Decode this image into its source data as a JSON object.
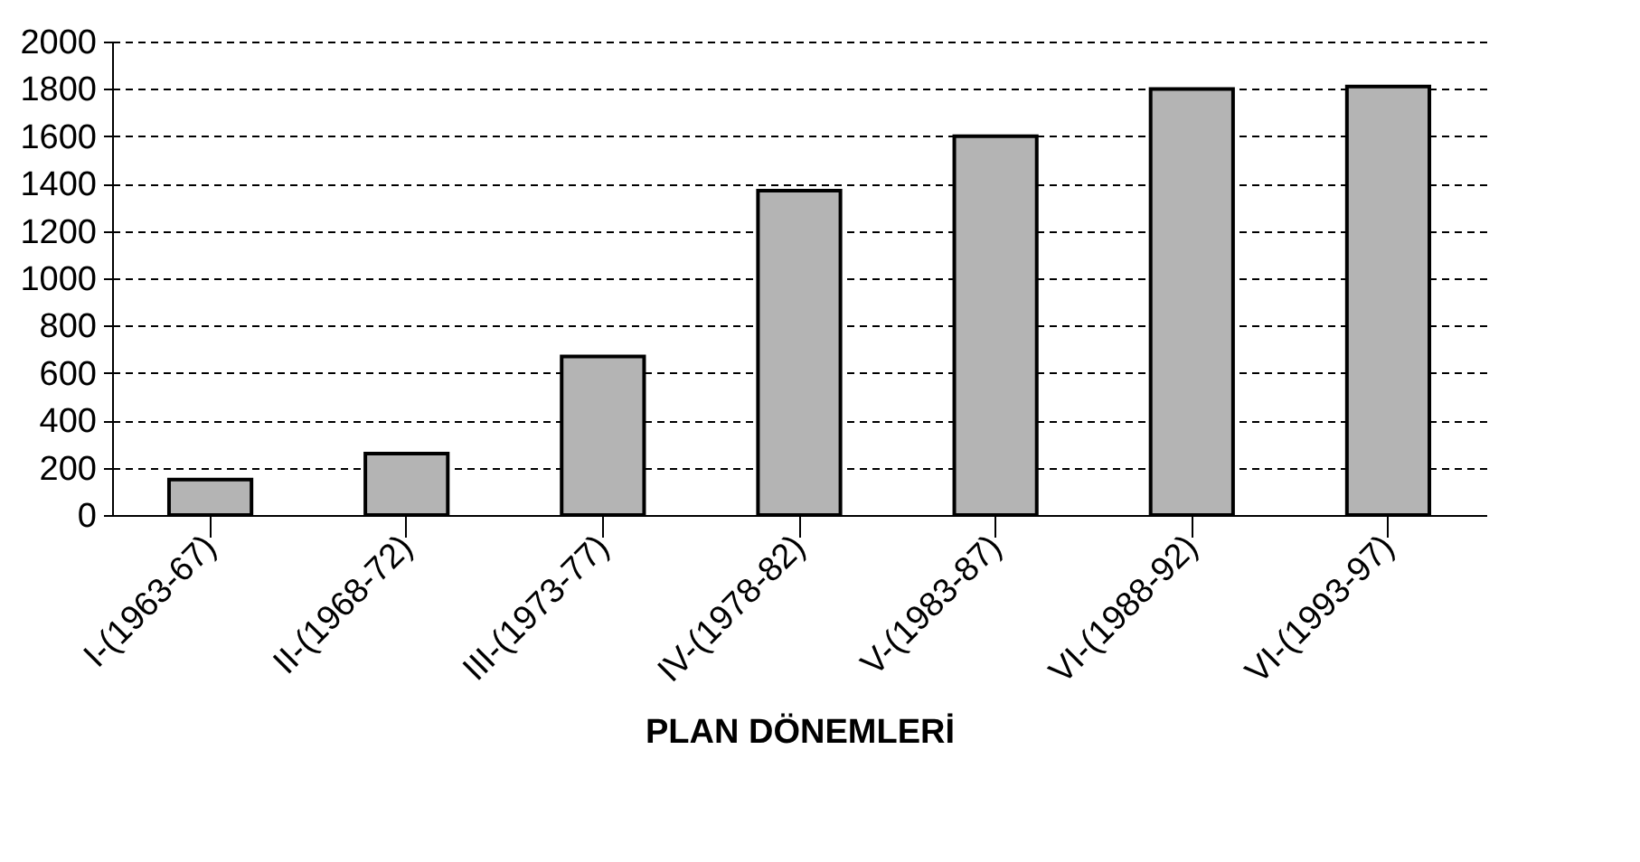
{
  "chart_data": {
    "type": "bar",
    "xlabel": "PLAN DÖNEMLERİ",
    "categories": [
      "I-(1963-67)",
      "II-(1968-72)",
      "III-(1973-77)",
      "IV-(1978-82)",
      "V-(1983-87)",
      "VI-(1988-92)",
      "VI-(1993-97)"
    ],
    "values": [
      150,
      260,
      670,
      1370,
      1600,
      1800,
      1810
    ],
    "color": "#b4b4b4",
    "ylim": [
      0,
      2000
    ],
    "yticks": [
      0,
      200,
      400,
      600,
      800,
      1000,
      1200,
      1400,
      1600,
      1800,
      2000
    ],
    "grid": "y"
  }
}
